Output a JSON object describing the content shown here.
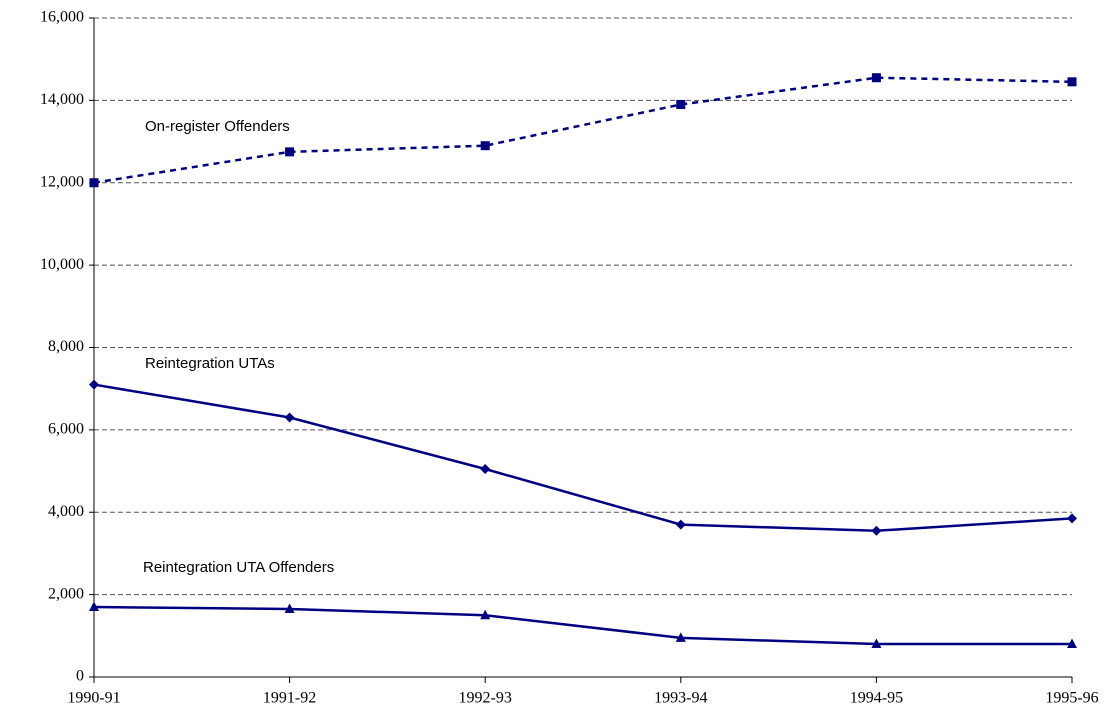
{
  "chart_data": {
    "type": "line",
    "categories": [
      "1990-91",
      "1991-92",
      "1992-93",
      "1993-94",
      "1994-95",
      "1995-96"
    ],
    "series": [
      {
        "name": "On-register Offenders",
        "color": "#000080",
        "marker": "square",
        "dashed": true,
        "values": [
          12000,
          12750,
          12900,
          13900,
          14550,
          14450
        ]
      },
      {
        "name": "Reintegration UTAs",
        "color": "#000080",
        "marker": "diamond",
        "dashed": false,
        "values": [
          7100,
          6300,
          5050,
          3700,
          3550,
          3850
        ]
      },
      {
        "name": "Reintegration UTA Offenders",
        "color": "#000080",
        "marker": "triangle",
        "dashed": false,
        "values": [
          1700,
          1650,
          1500,
          950,
          800,
          800
        ]
      }
    ],
    "ylim": [
      0,
      16000
    ],
    "yticks": [
      0,
      {
        "value": 2000,
        "label": "2,000"
      },
      {
        "value": 4000,
        "label": "4,000"
      },
      {
        "value": 6000,
        "label": "6,000"
      },
      {
        "value": 8000,
        "label": "8,000"
      },
      {
        "value": 10000,
        "label": "10,000"
      },
      {
        "value": 12000,
        "label": "12,000"
      },
      {
        "value": 14000,
        "label": "14,000"
      },
      {
        "value": 16000,
        "label": "16,000"
      }
    ],
    "grid": true
  }
}
